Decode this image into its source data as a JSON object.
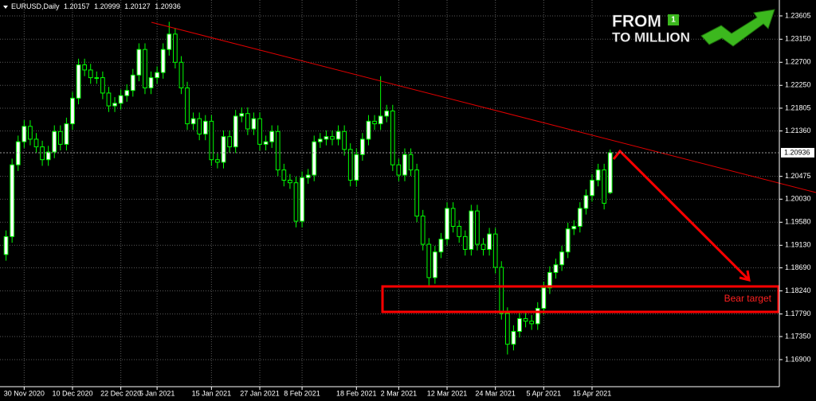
{
  "chart_data": {
    "type": "candlestick",
    "title": "EURUSD,Daily",
    "open": [
      1.1895,
      1.193,
      1.207,
      1.2115,
      1.2145,
      1.212,
      1.2105,
      1.208,
      1.2095,
      1.2135,
      1.211,
      1.215,
      1.22,
      1.2265,
      1.2255,
      1.224,
      1.224,
      1.221,
      1.2185,
      1.219,
      1.2205,
      1.2215,
      1.2245,
      1.2295,
      1.222,
      1.224,
      1.225,
      1.2295,
      1.2325,
      1.227,
      1.222,
      1.215,
      1.216,
      1.213,
      1.2155,
      1.208,
      1.2075,
      1.2125,
      1.2105,
      1.2165,
      1.217,
      1.214,
      1.216,
      1.211,
      1.2115,
      1.2135,
      1.206,
      1.204,
      1.2035,
      1.196,
      1.2045,
      1.205,
      1.2115,
      1.212,
      1.2125,
      1.212,
      1.2135,
      1.21,
      1.204,
      1.209,
      1.212,
      1.2155,
      1.215,
      1.2165,
      1.2175,
      1.207,
      1.205,
      1.209,
      1.206,
      1.197,
      1.1915,
      1.185,
      1.19,
      1.1925,
      1.1985,
      1.195,
      1.193,
      1.1905,
      1.198,
      1.1915,
      1.1905,
      1.1935,
      1.187,
      1.178,
      1.172,
      1.1745,
      1.177,
      1.1765,
      1.176,
      1.179,
      1.183,
      1.186,
      1.1875,
      1.19,
      1.1945,
      1.195,
      1.1985,
      1.201,
      1.204,
      1.206,
      1.20157
    ],
    "high": [
      1.1942,
      1.2082,
      1.2127,
      1.2157,
      1.2157,
      1.2132,
      1.2117,
      1.2107,
      1.2147,
      1.2147,
      1.2162,
      1.2212,
      1.2277,
      1.2277,
      1.2267,
      1.2252,
      1.2252,
      1.2222,
      1.2202,
      1.2217,
      1.2227,
      1.2257,
      1.2307,
      1.2307,
      1.2252,
      1.2262,
      1.2307,
      1.2349,
      1.2337,
      1.2282,
      1.2232,
      1.2172,
      1.2172,
      1.2167,
      1.2167,
      1.2092,
      1.2137,
      1.2137,
      1.2177,
      1.2182,
      1.2182,
      1.2172,
      1.2172,
      1.2127,
      1.2147,
      1.2147,
      1.2072,
      1.2052,
      1.2047,
      1.2057,
      1.2062,
      1.2127,
      1.2132,
      1.2137,
      1.2137,
      1.2147,
      1.2147,
      1.2112,
      1.2102,
      1.2132,
      1.2167,
      1.2167,
      1.2243,
      1.2187,
      1.2187,
      1.2082,
      1.2102,
      1.2102,
      1.2072,
      1.1982,
      1.1927,
      1.1912,
      1.1937,
      1.1997,
      1.1997,
      1.1962,
      1.1942,
      1.1992,
      1.1992,
      1.1927,
      1.1947,
      1.1947,
      1.1882,
      1.1792,
      1.1757,
      1.1782,
      1.1782,
      1.1777,
      1.1802,
      1.1842,
      1.1872,
      1.1887,
      1.1912,
      1.1957,
      1.1962,
      1.1997,
      1.2022,
      1.2052,
      1.2072,
      1.2072,
      1.20999
    ],
    "low": [
      1.1883,
      1.1918,
      1.2058,
      1.2103,
      1.2108,
      1.2093,
      1.2068,
      1.2068,
      1.2083,
      1.2098,
      1.2098,
      1.2138,
      1.2188,
      1.2243,
      1.2228,
      1.2228,
      1.2198,
      1.2173,
      1.2173,
      1.2178,
      1.2193,
      1.2203,
      1.2233,
      1.2208,
      1.2208,
      1.2228,
      1.2238,
      1.2283,
      1.2258,
      1.2208,
      1.2138,
      1.2138,
      1.2118,
      1.2118,
      1.2068,
      1.2063,
      1.2063,
      1.2093,
      1.2093,
      1.2153,
      1.2128,
      1.2128,
      1.2098,
      1.2098,
      1.2103,
      1.2048,
      1.2028,
      1.2023,
      1.1948,
      1.1948,
      1.2033,
      1.2038,
      1.2103,
      1.2108,
      1.2108,
      1.2108,
      1.2088,
      1.2028,
      1.2028,
      1.2078,
      1.2108,
      1.2138,
      1.2138,
      1.2153,
      1.2058,
      1.2038,
      1.2038,
      1.2048,
      1.1958,
      1.1903,
      1.1835,
      1.1838,
      1.1888,
      1.1913,
      1.1938,
      1.1918,
      1.1893,
      1.1893,
      1.1903,
      1.1893,
      1.1893,
      1.1858,
      1.1768,
      1.17,
      1.1708,
      1.1733,
      1.1753,
      1.1748,
      1.1748,
      1.1778,
      1.1818,
      1.1848,
      1.1863,
      1.1888,
      1.1933,
      1.1938,
      1.1973,
      1.1998,
      1.2028,
      1.1983,
      1.20127
    ],
    "close": [
      1.193,
      1.207,
      1.2115,
      1.2145,
      1.212,
      1.2105,
      1.208,
      1.2095,
      1.2135,
      1.211,
      1.215,
      1.22,
      1.2265,
      1.2255,
      1.224,
      1.224,
      1.221,
      1.2185,
      1.219,
      1.2205,
      1.2215,
      1.2245,
      1.2295,
      1.222,
      1.224,
      1.225,
      1.2295,
      1.2325,
      1.227,
      1.222,
      1.215,
      1.216,
      1.213,
      1.2155,
      1.208,
      1.2075,
      1.2125,
      1.2105,
      1.2165,
      1.217,
      1.214,
      1.216,
      1.211,
      1.2115,
      1.2135,
      1.206,
      1.204,
      1.2035,
      1.196,
      1.2045,
      1.205,
      1.2115,
      1.212,
      1.2125,
      1.212,
      1.2135,
      1.21,
      1.204,
      1.209,
      1.212,
      1.2155,
      1.215,
      1.2165,
      1.2175,
      1.207,
      1.205,
      1.209,
      1.206,
      1.197,
      1.1915,
      1.185,
      1.19,
      1.1925,
      1.1985,
      1.195,
      1.193,
      1.1905,
      1.198,
      1.1915,
      1.1905,
      1.1935,
      1.187,
      1.178,
      1.172,
      1.1745,
      1.177,
      1.1765,
      1.176,
      1.179,
      1.183,
      1.186,
      1.1875,
      1.19,
      1.1945,
      1.195,
      1.1985,
      1.201,
      1.204,
      1.206,
      1.1995,
      1.20936
    ],
    "xlim": [
      -1,
      128
    ],
    "xticks": [
      {
        "value": 3,
        "label": "30 Nov 2020"
      },
      {
        "value": 11,
        "label": "10 Dec 2020"
      },
      {
        "value": 19,
        "label": "22 Dec 2020"
      },
      {
        "value": 25,
        "label": "5 Jan 2021"
      },
      {
        "value": 34,
        "label": "15 Jan 2021"
      },
      {
        "value": 42,
        "label": "27 Jan 2021"
      },
      {
        "value": 49,
        "label": "8 Feb 2021"
      },
      {
        "value": 58,
        "label": "18 Feb 2021"
      },
      {
        "value": 65,
        "label": "2 Mar 2021"
      },
      {
        "value": 73,
        "label": "12 Mar 2021"
      },
      {
        "value": 81,
        "label": "24 Mar 2021"
      },
      {
        "value": 89,
        "label": "5 Apr 2021"
      },
      {
        "value": 97,
        "label": "15 Apr 2021"
      }
    ],
    "ylim": [
      1.16372,
      1.23915
    ],
    "yticks": [
      1.23605,
      {
        "value": 1.2315,
        "label": "1.23150"
      },
      {
        "value": 1.227,
        "label": "1.22700"
      },
      {
        "value": 1.2225,
        "label": "1.22250"
      },
      1.21805,
      {
        "value": 1.2136,
        "label": "1.21360"
      },
      1.20475,
      {
        "value": 1.2003,
        "label": "1.20030"
      },
      {
        "value": 1.1958,
        "label": "1.19580"
      },
      {
        "value": 1.1913,
        "label": "1.19130"
      },
      {
        "value": 1.1869,
        "label": "1.18690"
      },
      {
        "value": 1.1824,
        "label": "1.18240"
      },
      {
        "value": 1.1779,
        "label": "1.17790"
      },
      {
        "value": 1.1735,
        "label": "1.17350"
      },
      {
        "value": 1.169,
        "label": "1.16900"
      }
    ],
    "grid": true,
    "colors": {
      "up": "#ffffff",
      "down": "#000000",
      "outline": "#00ff00"
    },
    "annotation": "Bear target"
  },
  "logo": {
    "line1": "FROM",
    "badge": "1",
    "line2": "TO MILLION"
  }
}
